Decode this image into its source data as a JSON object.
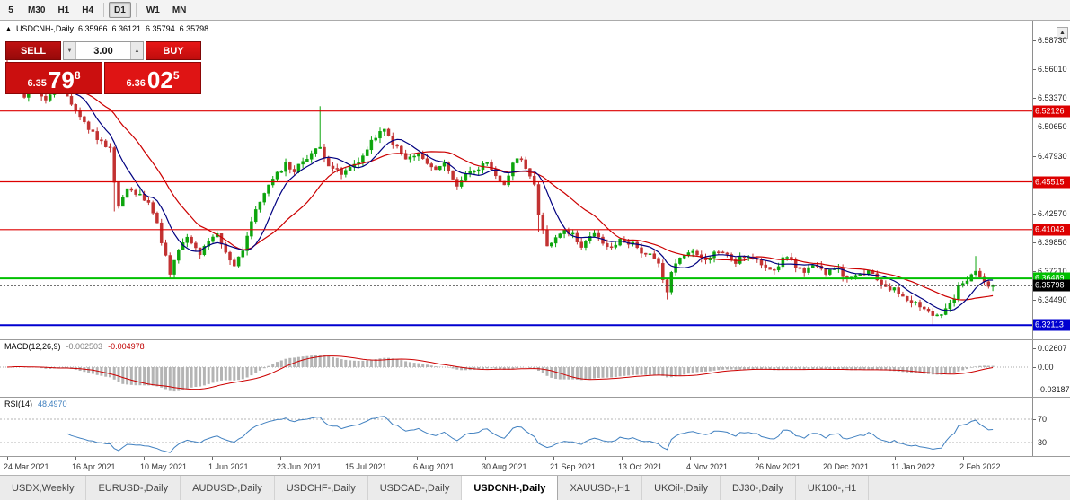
{
  "toolbar": {
    "timeframes": [
      {
        "label": "5"
      },
      {
        "label": "M30"
      },
      {
        "label": "H1"
      },
      {
        "label": "H4",
        "sep_after": true
      },
      {
        "label": "D1",
        "active": true,
        "sep_after": true
      },
      {
        "label": "W1"
      },
      {
        "label": "MN"
      }
    ]
  },
  "chart": {
    "header": {
      "collapse_icon": "▲",
      "symbol": "USDCNH-,Daily",
      "open": "6.35966",
      "high": "6.36121",
      "low": "6.35794",
      "close": "6.35798"
    },
    "trade_panel": {
      "sell_label": "SELL",
      "buy_label": "BUY",
      "volume": "3.00",
      "sell_big": "6.35",
      "sell_pips": "79",
      "sell_point": "8",
      "buy_big": "6.36",
      "buy_pips": "02",
      "buy_point": "5"
    },
    "price_axis": {
      "top_price": 6.5873,
      "ticks": [
        "6.58730",
        "6.56010",
        "6.53370",
        "6.50650",
        "6.47930",
        "6.45290",
        "6.42570",
        "6.39850",
        "6.37210",
        "6.34490"
      ]
    },
    "levels": [
      {
        "price": 6.52126,
        "label": "6.52126",
        "color": "#dd0000",
        "thick": false
      },
      {
        "price": 6.45515,
        "label": "6.45515",
        "color": "#dd0000",
        "thick": false
      },
      {
        "price": 6.41043,
        "label": "6.41043",
        "color": "#dd0000",
        "thick": false
      },
      {
        "price": 6.36489,
        "label": "6.36489",
        "color": "#00c000",
        "thick": true
      },
      {
        "price": 6.32113,
        "label": "6.32113",
        "color": "#0000d0",
        "thick": true
      }
    ],
    "current_price": {
      "value": 6.35798,
      "label": "6.35798",
      "color": "#000000"
    },
    "colors": {
      "up": "#0da50d",
      "down": "#c23232",
      "ma_fast": "#000080",
      "ma_slow": "#cc0000",
      "macd_hist": "#b4b4b4",
      "macd_signal": "#cc0000",
      "rsi_line": "#4080c0"
    },
    "candles": {
      "count": 231,
      "last_close": 6.35798,
      "anchors": [
        [
          0,
          6.546
        ],
        [
          2,
          6.556
        ],
        [
          4,
          6.536
        ],
        [
          6,
          6.548
        ],
        [
          9,
          6.53
        ],
        [
          12,
          6.552
        ],
        [
          14,
          6.535
        ],
        [
          16,
          6.522
        ],
        [
          19,
          6.505
        ],
        [
          22,
          6.492
        ],
        [
          24,
          6.488
        ],
        [
          25,
          6.455
        ],
        [
          26,
          6.432
        ],
        [
          28,
          6.448
        ],
        [
          31,
          6.442
        ],
        [
          33,
          6.438
        ],
        [
          35,
          6.415
        ],
        [
          37,
          6.385
        ],
        [
          38,
          6.368
        ],
        [
          40,
          6.392
        ],
        [
          42,
          6.402
        ],
        [
          45,
          6.388
        ],
        [
          47,
          6.398
        ],
        [
          49,
          6.406
        ],
        [
          51,
          6.388
        ],
        [
          53,
          6.378
        ],
        [
          55,
          6.392
        ],
        [
          57,
          6.418
        ],
        [
          60,
          6.446
        ],
        [
          63,
          6.462
        ],
        [
          65,
          6.472
        ],
        [
          67,
          6.465
        ],
        [
          69,
          6.475
        ],
        [
          71,
          6.482
        ],
        [
          73,
          6.487
        ],
        [
          75,
          6.472
        ],
        [
          78,
          6.462
        ],
        [
          80,
          6.468
        ],
        [
          83,
          6.479
        ],
        [
          86,
          6.498
        ],
        [
          88,
          6.503
        ],
        [
          90,
          6.492
        ],
        [
          93,
          6.476
        ],
        [
          96,
          6.481
        ],
        [
          99,
          6.467
        ],
        [
          102,
          6.472
        ],
        [
          105,
          6.452
        ],
        [
          108,
          6.466
        ],
        [
          112,
          6.471
        ],
        [
          114,
          6.459
        ],
        [
          116,
          6.453
        ],
        [
          119,
          6.479
        ],
        [
          121,
          6.47
        ],
        [
          123,
          6.452
        ],
        [
          124,
          6.422
        ],
        [
          126,
          6.396
        ],
        [
          128,
          6.403
        ],
        [
          130,
          6.412
        ],
        [
          132,
          6.405
        ],
        [
          134,
          6.396
        ],
        [
          137,
          6.406
        ],
        [
          139,
          6.398
        ],
        [
          141,
          6.392
        ],
        [
          143,
          6.401
        ],
        [
          146,
          6.397
        ],
        [
          148,
          6.39
        ],
        [
          150,
          6.386
        ],
        [
          152,
          6.378
        ],
        [
          153,
          6.362
        ],
        [
          154,
          6.352
        ],
        [
          155,
          6.372
        ],
        [
          157,
          6.383
        ],
        [
          159,
          6.391
        ],
        [
          161,
          6.387
        ],
        [
          163,
          6.384
        ],
        [
          166,
          6.391
        ],
        [
          168,
          6.386
        ],
        [
          170,
          6.38
        ],
        [
          172,
          6.386
        ],
        [
          175,
          6.381
        ],
        [
          177,
          6.377
        ],
        [
          179,
          6.374
        ],
        [
          182,
          6.386
        ],
        [
          184,
          6.377
        ],
        [
          186,
          6.37
        ],
        [
          188,
          6.376
        ],
        [
          191,
          6.371
        ],
        [
          193,
          6.376
        ],
        [
          195,
          6.368
        ],
        [
          197,
          6.364
        ],
        [
          199,
          6.368
        ],
        [
          201,
          6.371
        ],
        [
          203,
          6.363
        ],
        [
          205,
          6.358
        ],
        [
          207,
          6.354
        ],
        [
          209,
          6.349
        ],
        [
          211,
          6.344
        ],
        [
          213,
          6.34
        ],
        [
          215,
          6.334
        ],
        [
          216,
          6.33
        ],
        [
          218,
          6.332
        ],
        [
          219,
          6.336
        ],
        [
          221,
          6.346
        ],
        [
          222,
          6.356
        ],
        [
          224,
          6.363
        ],
        [
          226,
          6.371
        ],
        [
          228,
          6.361
        ],
        [
          230,
          6.358
        ]
      ],
      "wicks": [
        [
          0,
          "high",
          6.571
        ],
        [
          12,
          "high",
          6.566
        ],
        [
          25,
          "low",
          6.4275
        ],
        [
          38,
          "low",
          6.3655
        ],
        [
          73,
          "high",
          6.5258
        ],
        [
          124,
          "low",
          6.408
        ],
        [
          154,
          "low",
          6.3452
        ],
        [
          216,
          "low",
          6.3213
        ],
        [
          226,
          "high",
          6.3858
        ]
      ]
    }
  },
  "macd": {
    "name": "MACD(12,26,9)",
    "value_main": "-0.002503",
    "value_signal": "-0.004978",
    "axis": [
      "0.02607",
      "0.00",
      "-0.03187"
    ]
  },
  "rsi": {
    "name": "RSI(14)",
    "value": "48.4970",
    "axis": [
      "70",
      "30"
    ],
    "levels": [
      70,
      30
    ]
  },
  "date_axis": [
    "24 Mar 2021",
    "16 Apr 2021",
    "10 May 2021",
    "1 Jun 2021",
    "23 Jun 2021",
    "15 Jul 2021",
    "6 Aug 2021",
    "30 Aug 2021",
    "21 Sep 2021",
    "13 Oct 2021",
    "4 Nov 2021",
    "26 Nov 2021",
    "20 Dec 2021",
    "11 Jan 2022",
    "2 Feb 2022"
  ],
  "tabs": [
    {
      "label": "USDX,Weekly"
    },
    {
      "label": "EURUSD-,Daily"
    },
    {
      "label": "AUDUSD-,Daily"
    },
    {
      "label": "USDCHF-,Daily"
    },
    {
      "label": "USDCAD-,Daily"
    },
    {
      "label": "USDCNH-,Daily",
      "active": true
    },
    {
      "label": "XAUUSD-,H1"
    },
    {
      "label": "UKOil-,Daily"
    },
    {
      "label": "DJ30-,Daily"
    },
    {
      "label": "UK100-,H1"
    }
  ]
}
